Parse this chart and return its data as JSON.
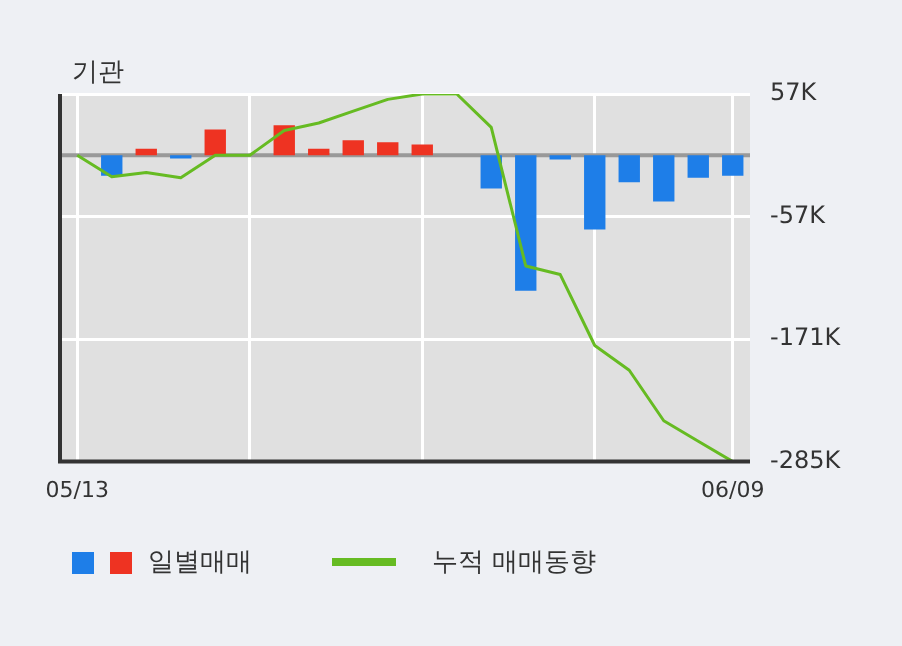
{
  "chart_data": {
    "type": "bar",
    "title": "기관",
    "categories": [
      "05/13",
      null,
      null,
      null,
      null,
      null,
      null,
      null,
      null,
      null,
      null,
      null,
      null,
      null,
      null,
      null,
      null,
      null,
      null,
      "06/09"
    ],
    "series": [
      {
        "name": "일별매매",
        "colors": [
          "#1e7ee8",
          "#1e7ee8",
          "#ee3322",
          "#1e7ee8",
          "#ee3322",
          "#1e7ee8",
          "#ee3322",
          "#ee3322",
          "#ee3322",
          "#ee3322",
          "#ee3322",
          "#1e7ee8",
          "#1e7ee8",
          "#1e7ee8",
          "#1e7ee8",
          "#1e7ee8",
          "#1e7ee8",
          "#1e7ee8",
          "#1e7ee8",
          "#1e7ee8"
        ],
        "values": [
          0,
          -19000,
          6000,
          -3000,
          24000,
          0,
          28000,
          6000,
          14000,
          12000,
          10000,
          0,
          -31000,
          -126000,
          -4000,
          -69000,
          -25000,
          -43000,
          -21000,
          -19000
        ]
      },
      {
        "name": "누적 매매동향",
        "type": "line",
        "color": "#66bb22",
        "values": [
          0,
          -20000,
          -16000,
          -21000,
          0,
          0,
          23000,
          30000,
          41000,
          52000,
          57000,
          57000,
          26000,
          -103000,
          -111000,
          -177000,
          -200000,
          -247000,
          -266000,
          -285000
        ]
      }
    ],
    "ylim": [
      -285000,
      57000
    ],
    "yticks": [
      {
        "value": 57000,
        "label": "57K"
      },
      {
        "value": -57000,
        "label": "-57K"
      },
      {
        "value": -171000,
        "label": "-171K"
      },
      {
        "value": -285000,
        "label": "-285K"
      }
    ],
    "ref_lines": [
      {
        "axis": "y",
        "value": 0,
        "color": "#999999"
      }
    ],
    "grid": true,
    "legend": "bottom",
    "marker": "none",
    "line_style": "solid"
  }
}
